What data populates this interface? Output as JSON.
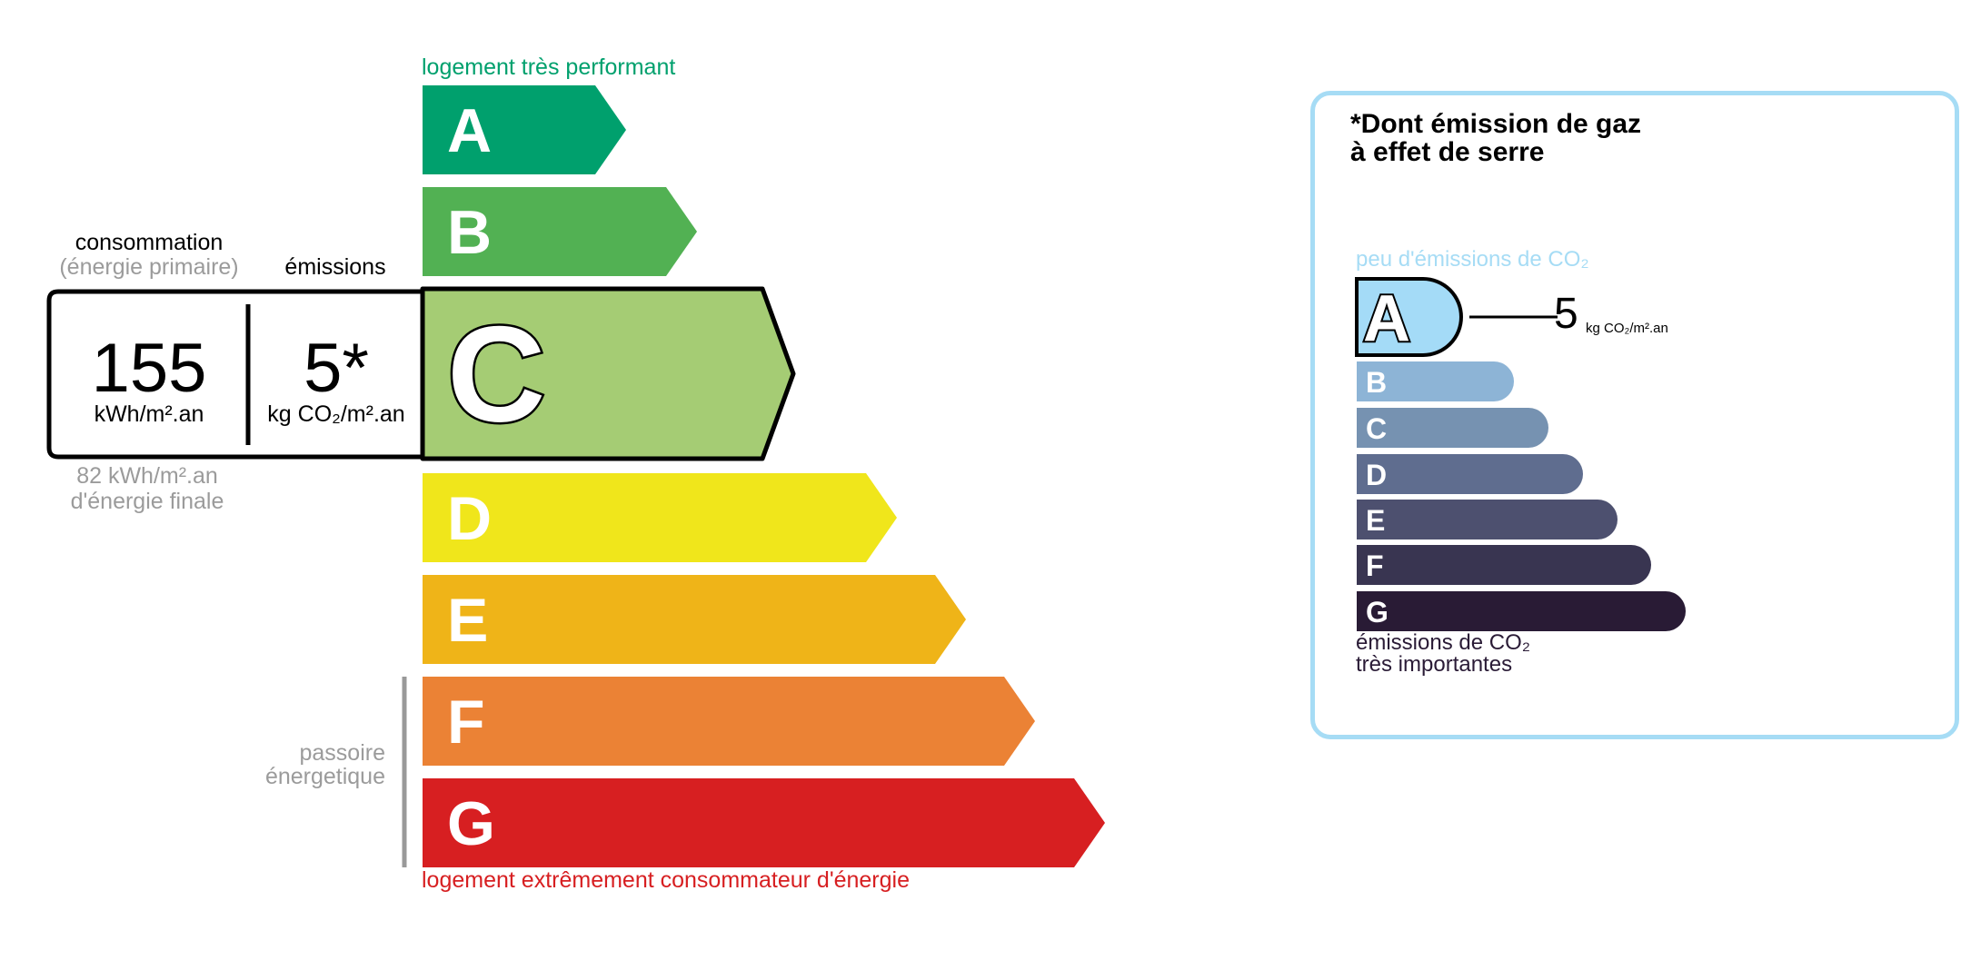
{
  "energy": {
    "top_label": "logement très performant",
    "bottom_label": "logement extrêmement consommateur d'énergie",
    "classes": [
      "A",
      "B",
      "C",
      "D",
      "E",
      "F",
      "G"
    ],
    "colors": {
      "A": "#00a06d",
      "B": "#52b153",
      "C": "#a5cc74",
      "D": "#f0e61b",
      "E": "#efb418",
      "F": "#eb8235",
      "G": "#d71f21"
    },
    "current_class": "C",
    "consumption_label": "consommation",
    "consumption_sublabel": "(énergie primaire)",
    "emissions_label": "émissions",
    "consumption_value": "155",
    "consumption_unit": "kWh/m².an",
    "emissions_value": "5*",
    "emissions_unit": "kg CO₂/m².an",
    "final_value": "82 kWh/m².an",
    "final_label": "d'énergie finale",
    "passoire_line1": "passoire",
    "passoire_line2": "énergetique"
  },
  "ges": {
    "title_line1": "*Dont émission de gaz",
    "title_line2": "à effet de serre",
    "top_label": "peu d'émissions de CO₂",
    "bottom_line1": "émissions de CO₂",
    "bottom_line2": "très importantes",
    "classes": [
      "A",
      "B",
      "C",
      "D",
      "E",
      "F",
      "G"
    ],
    "colors": {
      "A": "#a4dbf7",
      "B": "#8db4d6",
      "C": "#7692b1",
      "D": "#5f6d8f",
      "E": "#4d506f",
      "F": "#393551",
      "G": "#291b35"
    },
    "current_class": "A",
    "value": "5",
    "unit": "kg CO₂/m².an"
  }
}
